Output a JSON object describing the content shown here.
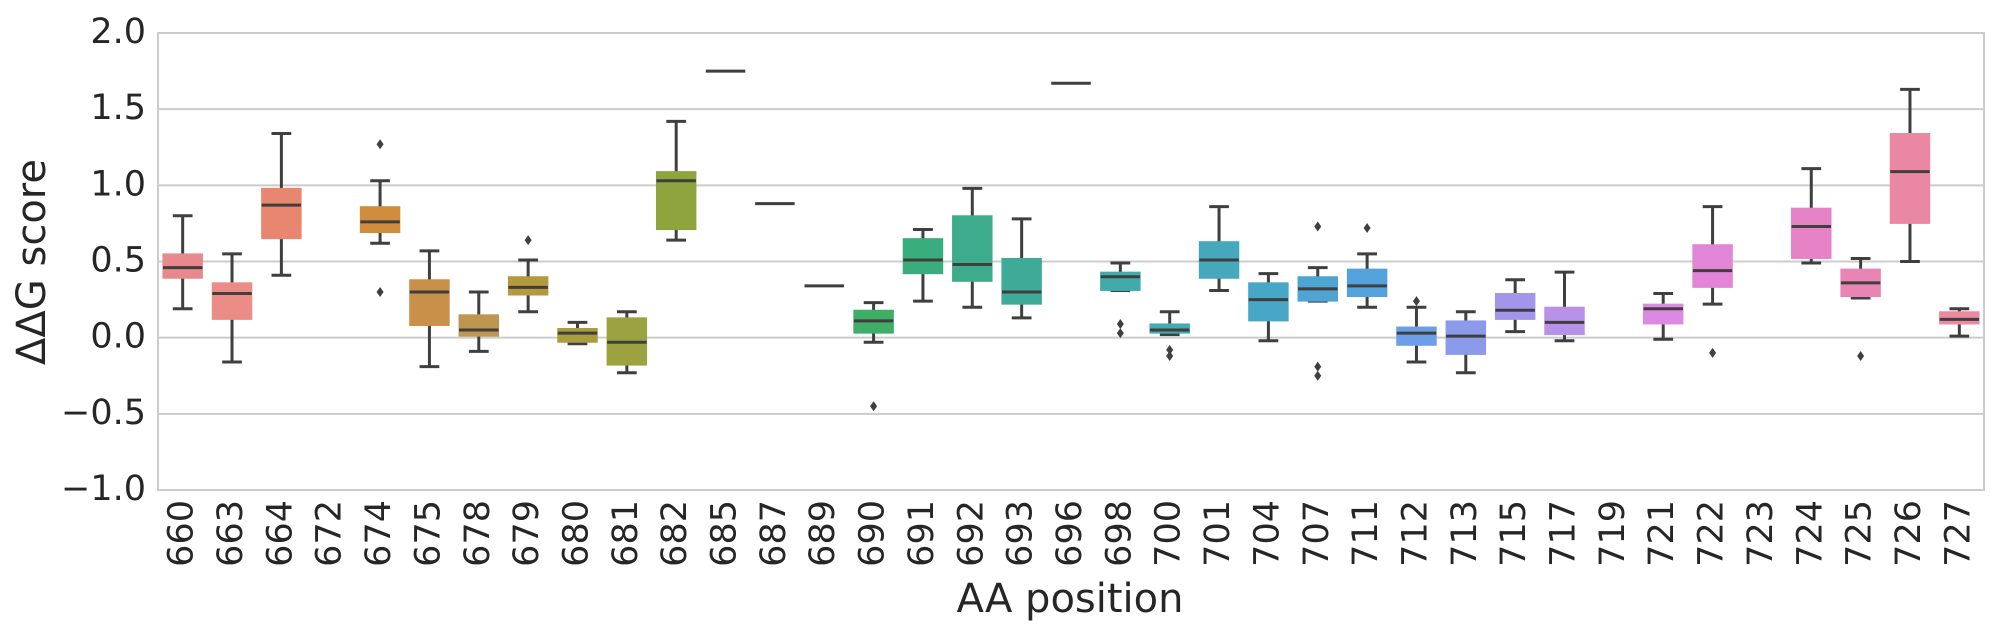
{
  "chart_data": {
    "type": "box",
    "xlabel": "AA position",
    "ylabel": "ΔΔG score",
    "categories": [
      "660",
      "663",
      "664",
      "672",
      "674",
      "675",
      "678",
      "679",
      "680",
      "681",
      "682",
      "685",
      "687",
      "689",
      "690",
      "691",
      "692",
      "693",
      "696",
      "698",
      "700",
      "701",
      "704",
      "707",
      "711",
      "712",
      "713",
      "715",
      "717",
      "719",
      "721",
      "722",
      "723",
      "724",
      "725",
      "726",
      "727"
    ],
    "whislo": [
      0.19,
      -0.16,
      0.41,
      null,
      0.62,
      -0.19,
      -0.09,
      0.17,
      -0.04,
      -0.23,
      0.64,
      null,
      null,
      null,
      -0.03,
      0.24,
      0.2,
      0.13,
      null,
      0.31,
      0.02,
      0.31,
      -0.02,
      0.24,
      0.2,
      -0.16,
      -0.23,
      0.04,
      -0.02,
      null,
      -0.01,
      0.22,
      null,
      0.49,
      0.26,
      0.5,
      0.01
    ],
    "q1": [
      0.39,
      0.12,
      0.65,
      null,
      0.69,
      0.08,
      0.01,
      0.28,
      -0.03,
      -0.18,
      0.71,
      null,
      null,
      null,
      0.03,
      0.42,
      0.37,
      0.22,
      null,
      0.31,
      0.03,
      0.39,
      0.11,
      0.24,
      0.27,
      -0.05,
      -0.11,
      0.12,
      0.02,
      null,
      0.09,
      0.33,
      null,
      0.52,
      0.27,
      0.75,
      0.09
    ],
    "median": [
      0.46,
      0.29,
      0.87,
      null,
      0.76,
      0.3,
      0.05,
      0.33,
      0.03,
      -0.03,
      1.03,
      1.75,
      0.88,
      0.34,
      0.11,
      0.51,
      0.48,
      0.3,
      1.67,
      0.4,
      0.05,
      0.51,
      0.25,
      0.32,
      0.34,
      0.03,
      0.01,
      0.18,
      0.1,
      null,
      0.19,
      0.44,
      null,
      0.73,
      0.36,
      1.09,
      0.12
    ],
    "q3": [
      0.55,
      0.36,
      0.98,
      null,
      0.86,
      0.38,
      0.15,
      0.4,
      0.06,
      0.13,
      1.09,
      null,
      null,
      null,
      0.18,
      0.65,
      0.8,
      0.52,
      null,
      0.43,
      0.09,
      0.63,
      0.36,
      0.4,
      0.45,
      0.07,
      0.11,
      0.29,
      0.2,
      null,
      0.22,
      0.61,
      null,
      0.85,
      0.45,
      1.34,
      0.17
    ],
    "whishi": [
      0.8,
      0.55,
      1.34,
      null,
      1.03,
      0.57,
      0.3,
      0.51,
      0.1,
      0.17,
      1.42,
      null,
      null,
      null,
      0.23,
      0.71,
      0.98,
      0.78,
      null,
      0.49,
      0.17,
      0.86,
      0.42,
      0.46,
      0.55,
      0.2,
      0.17,
      0.38,
      0.43,
      null,
      0.29,
      0.86,
      null,
      1.11,
      0.52,
      1.63,
      0.19
    ],
    "outliers": [
      [],
      [],
      [],
      [],
      [
        1.27,
        0.3
      ],
      [],
      [],
      [
        0.64
      ],
      [],
      [],
      [],
      [],
      [],
      [],
      [
        -0.45
      ],
      [],
      [],
      [],
      [],
      [
        0.09,
        0.03
      ],
      [
        -0.08,
        -0.12
      ],
      [],
      [],
      [
        0.73,
        -0.19,
        -0.25
      ],
      [
        0.72
      ],
      [
        0.24
      ],
      [],
      [],
      [],
      [],
      [],
      [
        -0.1
      ],
      [],
      [],
      [
        -0.12
      ],
      [],
      []
    ],
    "colors": [
      "#e8898d",
      "#eb8c87",
      "#e8866f",
      null,
      "#d08d3c",
      "#c9904a",
      "#bf9650",
      "#b5993f",
      "#aa9d3e",
      "#9ba23f",
      "#8da53c",
      null,
      null,
      null,
      "#3fae67",
      "#3aad7c",
      "#3cac8c",
      "#3eab98",
      null,
      "#42aaaa",
      "#43a9b3",
      "#45a8bd",
      "#48a6c6",
      "#4ea4d2",
      "#54a2dc",
      "#6d9fe8",
      "#8b9ae9",
      "#a395ea",
      "#b891e8",
      null,
      "#dc89e1",
      "#e285d7",
      null,
      "#e683c6",
      "#e985b5",
      "#ea88a4",
      "#eb89a0"
    ],
    "ylim": [
      -1.0,
      2.0
    ],
    "yticks": [
      {
        "value": -1.0,
        "label": "−1.0"
      },
      {
        "value": -0.5,
        "label": "−0.5"
      },
      {
        "value": 0,
        "label": "0.0"
      },
      0.5,
      {
        "value": 1.0,
        "label": "1.0"
      },
      1.5,
      {
        "value": 2.0,
        "label": "2.0"
      }
    ],
    "grid": true
  }
}
